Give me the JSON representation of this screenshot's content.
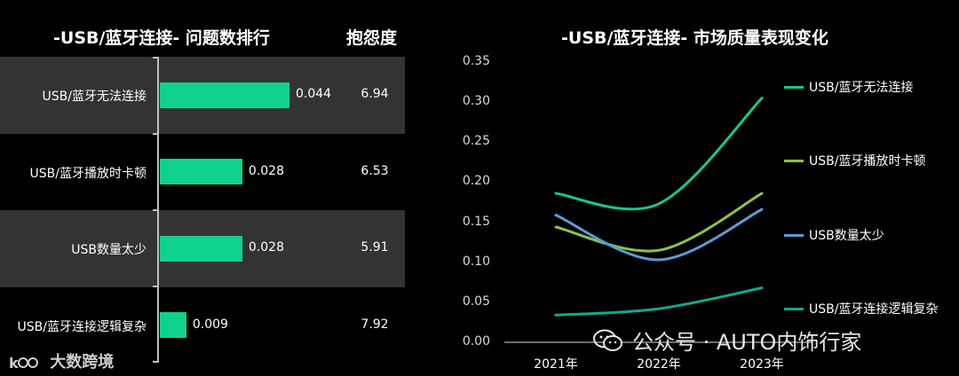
{
  "left_title": "-USB/蓝牙连接- 问题数排行",
  "score_header": "抱怨度",
  "right_title": "-USB/蓝牙连接- 市场质量表现变化",
  "watermark": "公众号 · AUTO内饰行家",
  "logo": "大数跨境",
  "colors": {
    "bar": "#0fd38a",
    "row_band": "#333333",
    "series": [
      "#13c98a",
      "#8bc34a",
      "#5b9bd5",
      "#12a98a"
    ]
  },
  "chart_data": [
    {
      "type": "bar",
      "orientation": "horizontal",
      "title": "-USB/蓝牙连接- 问题数排行",
      "categories": [
        "USB/蓝牙无法连接",
        "USB/蓝牙播放时卡顿",
        "USB数量太少",
        "USB/蓝牙连接逻辑复杂"
      ],
      "values": [
        0.044,
        0.028,
        0.028,
        0.009
      ],
      "value_labels": [
        "0.044",
        "0.028",
        "0.028",
        "0.009"
      ],
      "column_header": "抱怨度",
      "scores": [
        "6.94",
        "6.53",
        "5.91",
        "7.92"
      ]
    },
    {
      "type": "line",
      "title": "-USB/蓝牙连接- 市场质量表现变化",
      "x": [
        "2021年",
        "2022年",
        "2023年"
      ],
      "ylim": [
        0,
        0.35
      ],
      "yticks": [
        "0.00",
        "0.05",
        "0.10",
        "0.15",
        "0.20",
        "0.25",
        "0.30",
        "0.35"
      ],
      "legend_placement": "right",
      "grid": false,
      "series": [
        {
          "name": "USB/蓝牙无法连接",
          "values": [
            0.186,
            0.173,
            0.305
          ]
        },
        {
          "name": "USB/蓝牙播放时卡顿",
          "values": [
            0.144,
            0.115,
            0.186
          ]
        },
        {
          "name": "USB数量太少",
          "values": [
            0.159,
            0.103,
            0.166
          ]
        },
        {
          "name": "USB/蓝牙连接逻辑复杂",
          "values": [
            0.034,
            0.042,
            0.068
          ]
        }
      ]
    }
  ]
}
